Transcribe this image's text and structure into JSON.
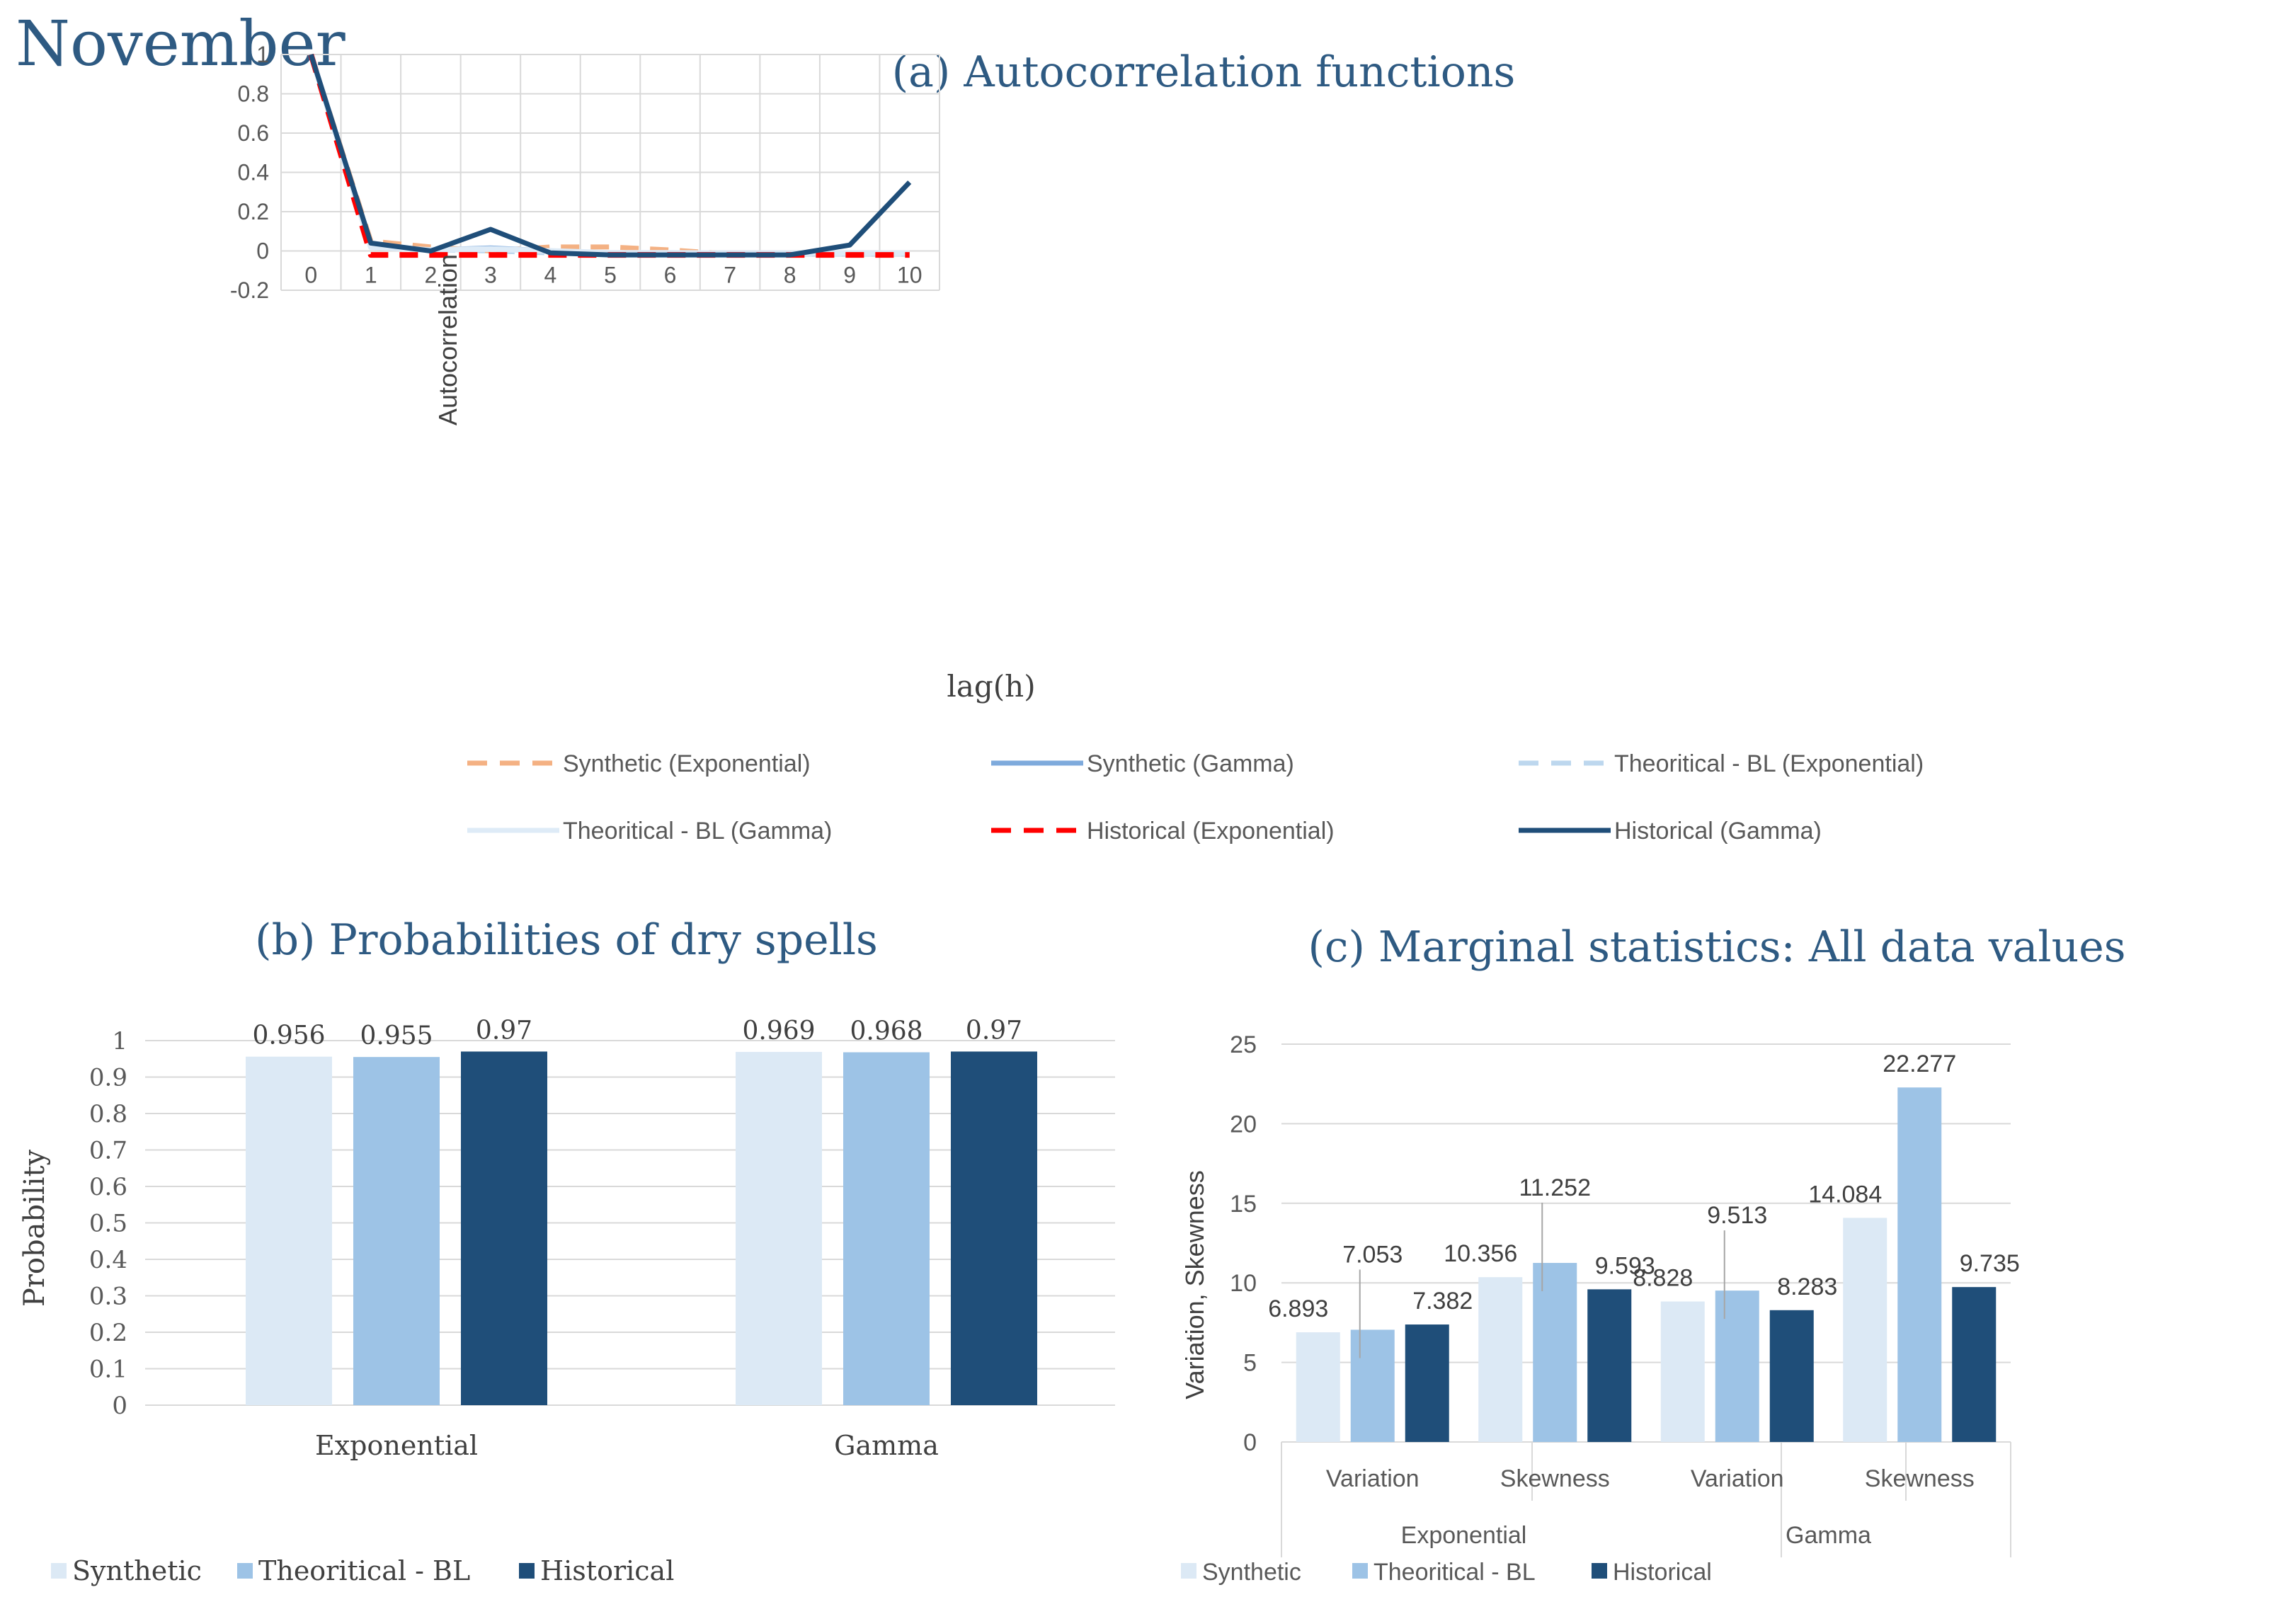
{
  "page_title": "November",
  "colors": {
    "title": "#2e5a82",
    "grid": "#d9d9d9",
    "axis_text": "#595959",
    "synthetic": "#dce9f5",
    "theoretical": "#9dc3e6",
    "historical": "#1f4e79",
    "synthetic_exp": "#f4b183",
    "synthetic_gamma": "#7eaadc",
    "theo_exp": "#bdd7ee",
    "theo_gamma": "#deebf7",
    "hist_exp": "#ff0000",
    "hist_gamma": "#1f4e79"
  },
  "chart_data": [
    {
      "id": "acf",
      "type": "line",
      "title": "(a) Autocorrelation functions",
      "xlabel": "lag(h)",
      "ylabel": "Autocorrelation",
      "x": [
        0,
        1,
        2,
        3,
        4,
        5,
        6,
        7,
        8,
        9,
        10
      ],
      "x_tick_labels": [
        "0",
        "1",
        "2",
        "3",
        "4",
        "5",
        "6",
        "7",
        "8",
        "9",
        "10"
      ],
      "y_tick_labels": [
        "1",
        "0.8",
        "0.6",
        "0.4",
        "0.2",
        "0",
        "-0.2"
      ],
      "ylim": [
        -0.2,
        1
      ],
      "series": [
        {
          "name": "Synthetic (Exponential)",
          "style": "dashed",
          "color_key": "synthetic_exp",
          "values": [
            1,
            0.05,
            0.02,
            0.0,
            0.02,
            0.02,
            0.005,
            -0.015,
            -0.015,
            -0.015,
            -0.015
          ]
        },
        {
          "name": "Synthetic (Gamma)",
          "style": "solid",
          "color_key": "synthetic_gamma",
          "values": [
            1,
            0.03,
            0.005,
            0.015,
            0.0,
            -0.01,
            -0.015,
            -0.015,
            -0.015,
            -0.015,
            -0.015
          ]
        },
        {
          "name": "Theoritical - BL (Exponential)",
          "style": "dashed",
          "color_key": "theo_exp",
          "values": [
            1,
            0.02,
            0.005,
            0.0,
            -0.01,
            -0.01,
            -0.012,
            -0.015,
            -0.015,
            -0.015,
            -0.015
          ]
        },
        {
          "name": "Theoritical - BL (Gamma)",
          "style": "solid",
          "color_key": "theo_gamma",
          "values": [
            1,
            0.02,
            0.005,
            0.01,
            0.0,
            -0.01,
            -0.01,
            -0.012,
            -0.012,
            -0.012,
            -0.012
          ]
        },
        {
          "name": "Historical (Exponential)",
          "style": "dashed",
          "color_key": "hist_exp",
          "values": [
            1,
            -0.02,
            -0.02,
            -0.02,
            -0.02,
            -0.02,
            -0.02,
            -0.02,
            -0.02,
            -0.02,
            -0.02
          ]
        },
        {
          "name": "Historical (Gamma)",
          "style": "solid",
          "color_key": "hist_gamma",
          "values": [
            1,
            0.04,
            0.0,
            0.11,
            -0.01,
            -0.02,
            -0.02,
            -0.02,
            -0.02,
            0.03,
            0.35
          ]
        }
      ]
    },
    {
      "id": "dry",
      "type": "bar",
      "title": "(b) Probabilities of dry spells",
      "ylabel": "Probability",
      "categories": [
        "Exponential",
        "Gamma"
      ],
      "ylim": [
        0,
        1
      ],
      "y_tick_labels": [
        "1",
        "0.9",
        "0.8",
        "0.7",
        "0.6",
        "0.5",
        "0.4",
        "0.3",
        "0.2",
        "0.1",
        "0"
      ],
      "series": [
        {
          "name": "Synthetic",
          "color_key": "synthetic",
          "values": [
            0.956,
            0.969
          ],
          "labels": [
            "0.956",
            "0.969"
          ]
        },
        {
          "name": "Theoritical - BL",
          "color_key": "theoretical",
          "values": [
            0.955,
            0.968
          ],
          "labels": [
            "0.955",
            "0.968"
          ]
        },
        {
          "name": "Historical",
          "color_key": "historical",
          "values": [
            0.97,
            0.97
          ],
          "labels": [
            "0.97",
            "0.97"
          ]
        }
      ]
    },
    {
      "id": "marg",
      "type": "bar",
      "title": "(c) Marginal statistics: All data values",
      "ylabel": "Variation, Skewness",
      "categories": [
        "Variation",
        "Skewness",
        "Variation",
        "Skewness"
      ],
      "groups": [
        "Exponential",
        "Gamma"
      ],
      "ylim": [
        0,
        25
      ],
      "y_tick_labels": [
        "25",
        "20",
        "15",
        "10",
        "5",
        "0"
      ],
      "series": [
        {
          "name": "Synthetic",
          "color_key": "synthetic",
          "values": [
            6.893,
            10.356,
            8.828,
            14.084
          ],
          "labels": [
            "6.893",
            "10.356",
            "8.828",
            "14.084"
          ]
        },
        {
          "name": "Theoritical - BL",
          "color_key": "theoretical",
          "values": [
            7.053,
            11.252,
            9.513,
            22.277
          ],
          "labels": [
            "7.053",
            "11.252",
            "9.513",
            "22.277"
          ]
        },
        {
          "name": "Historical",
          "color_key": "historical",
          "values": [
            7.382,
            9.593,
            8.283,
            9.735
          ],
          "labels": [
            "7.382",
            "9.593",
            "8.283",
            "9.735"
          ]
        }
      ]
    }
  ]
}
